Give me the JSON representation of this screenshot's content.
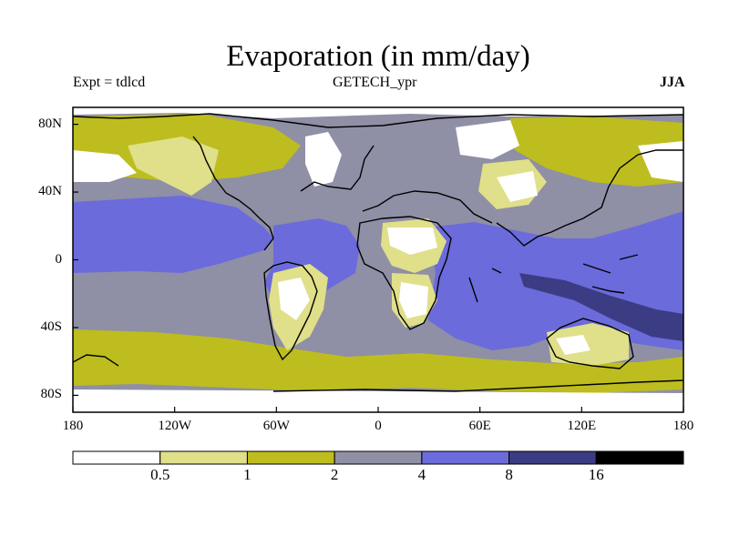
{
  "title": "Evaporation (in mm/day)",
  "subtitle_left": "Expt = tdlcd",
  "subtitle_center": "GETECH_ypr",
  "subtitle_right": "JJA",
  "map": {
    "lon_range": [
      -180,
      180
    ],
    "lat_range": [
      -90,
      90
    ],
    "y_ticks": [
      {
        "lat": 80,
        "label": "80N"
      },
      {
        "lat": 40,
        "label": "40N"
      },
      {
        "lat": 0,
        "label": "0"
      },
      {
        "lat": -40,
        "label": "40S"
      },
      {
        "lat": -80,
        "label": "80S"
      }
    ],
    "x_ticks": [
      {
        "lon": -180,
        "label": "180"
      },
      {
        "lon": -120,
        "label": "120W"
      },
      {
        "lon": -60,
        "label": "60W"
      },
      {
        "lon": 0,
        "label": "0"
      },
      {
        "lon": 60,
        "label": "60E"
      },
      {
        "lon": 120,
        "label": "120E"
      },
      {
        "lon": 180,
        "label": "180"
      }
    ]
  },
  "colorbar": {
    "colors": [
      "#ffffff",
      "#e0df8a",
      "#bdbd1f",
      "#8f8fa6",
      "#6b6bdc",
      "#3c3c84",
      "#000000"
    ],
    "labels": [
      "0.5",
      "1",
      "2",
      "4",
      "8",
      "16"
    ]
  },
  "regions": {
    "ocean_mid": "#8f8fa6",
    "ocean_tropical": "#6b6bdc",
    "ocean_southern": "#bdbd1f",
    "polar": "#ffffff",
    "land_dry": "#e0df8a",
    "land_desert": "#ffffff",
    "ocean_max": "#3c3c84"
  }
}
